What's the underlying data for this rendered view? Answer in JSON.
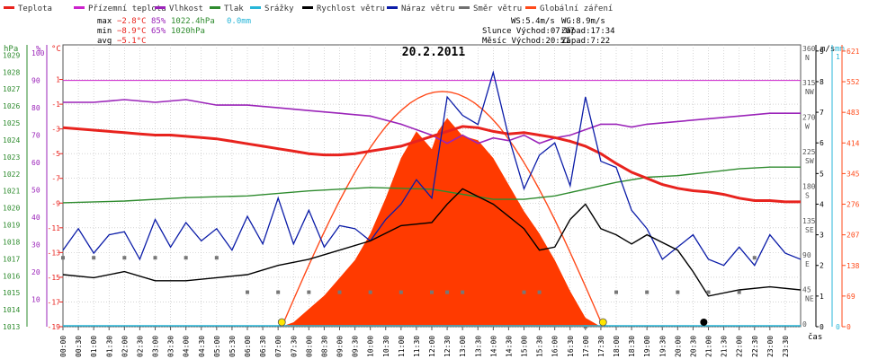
{
  "chart_data": {
    "type": "line",
    "title": "20.2.2011",
    "xlabel": "čas",
    "legend": [
      {
        "name": "Teplota",
        "color": "#e8231e"
      },
      {
        "name": "Přízemní teplota",
        "color": "#cc22cc"
      },
      {
        "name": "Vlhkost",
        "color": "#9b24b9"
      },
      {
        "name": "Tlak",
        "color": "#2e8b2e"
      },
      {
        "name": "Srážky",
        "color": "#27b6d8"
      },
      {
        "name": "Rychlost větru",
        "color": "#000000"
      },
      {
        "name": "Náraz větru",
        "color": "#0b1ca8"
      },
      {
        "name": "Směr větru",
        "color": "#707070"
      },
      {
        "name": "Globální záření",
        "color": "#ff4a1a"
      }
    ],
    "stats": {
      "max": {
        "label": "max",
        "temp": "−2.8°C",
        "hum": "85%",
        "press": "1022.4hPa",
        "rain": "0.0mm"
      },
      "min": {
        "label": "min",
        "temp": "−8.9°C",
        "hum": "65%",
        "press": "1020hPa"
      },
      "avg": {
        "label": "avg",
        "temp": "−5.1°C"
      }
    },
    "info": {
      "ws": "WS:5.4m/s",
      "wg": "WG:8.9m/s",
      "sun": "Slunce Východ:07:07",
      "sun_set": "Západ:17:34",
      "moon": "Měsíc  Východ:20:51",
      "moon_set": "Západ:7:22"
    },
    "axes": {
      "left_units": {
        "hpa": "hPa",
        "pct": "%",
        "degc": "°C"
      },
      "right_units": {
        "ms": "m/s",
        "mm": "mm"
      },
      "hpa_ticks": [
        "1029",
        "1028",
        "1027",
        "1026",
        "1025",
        "1024",
        "1023",
        "1022",
        "1021",
        "1020",
        "1019",
        "1018",
        "1017",
        "1016",
        "1015",
        "1014",
        "1013"
      ],
      "pct_ticks": [
        "100",
        "90",
        "80",
        "70",
        "60",
        "50",
        "40",
        "30",
        "20",
        "10"
      ],
      "temp_ticks": [
        "1",
        "-1",
        "-3",
        "-5",
        "-7",
        "-9",
        "-11",
        "-13",
        "-15",
        "-17",
        "-19"
      ],
      "dir_ticks": [
        {
          "deg": "360",
          "lbl": "N"
        },
        {
          "deg": "315",
          "lbl": "NW"
        },
        {
          "deg": "270",
          "lbl": "W"
        },
        {
          "deg": "225",
          "lbl": "SW"
        },
        {
          "deg": "180",
          "lbl": "S"
        },
        {
          "deg": "135",
          "lbl": "SE"
        },
        {
          "deg": "90",
          "lbl": "E"
        },
        {
          "deg": "45",
          "lbl": "NE"
        },
        {
          "deg": "0",
          "lbl": ""
        }
      ],
      "ms_ticks": [
        "9",
        "8",
        "7",
        "6",
        "5",
        "4",
        "3",
        "2",
        "1",
        "0"
      ],
      "mm_top": "1",
      "mm_bottom": "0",
      "rad_ticks": [
        "621",
        "552",
        "483",
        "414",
        "345",
        "276",
        "207",
        "138",
        "69",
        "0"
      ],
      "time_labels": [
        "00:00",
        "00:30",
        "01:00",
        "01:30",
        "02:00",
        "02:30",
        "03:00",
        "03:30",
        "04:00",
        "04:30",
        "05:00",
        "05:30",
        "06:00",
        "06:30",
        "07:00",
        "07:30",
        "08:00",
        "08:30",
        "09:00",
        "09:30",
        "10:00",
        "10:30",
        "11:00",
        "11:30",
        "12:00",
        "12:30",
        "13:00",
        "13:30",
        "14:00",
        "14:30",
        "15:00",
        "15:30",
        "16:00",
        "16:30",
        "17:00",
        "17:30",
        "18:00",
        "18:30",
        "19:00",
        "19:30",
        "20:00",
        "20:30",
        "21:00",
        "21:30",
        "22:00",
        "22:30",
        "23:00",
        "23:30"
      ]
    },
    "ylim": {
      "temp": [
        -19,
        1
      ],
      "humidity": [
        10,
        100
      ],
      "pressure": [
        1013,
        1029
      ],
      "wind": [
        0,
        9
      ],
      "radiation": [
        0,
        621
      ],
      "direction": [
        0,
        360
      ]
    },
    "series": {
      "temperature": [
        [
          0,
          -2.9
        ],
        [
          0.5,
          -3.0
        ],
        [
          1,
          -3.1
        ],
        [
          1.5,
          -3.2
        ],
        [
          2,
          -3.3
        ],
        [
          2.5,
          -3.4
        ],
        [
          3,
          -3.5
        ],
        [
          3.5,
          -3.5
        ],
        [
          4,
          -3.6
        ],
        [
          4.5,
          -3.7
        ],
        [
          5,
          -3.8
        ],
        [
          5.5,
          -4.0
        ],
        [
          6,
          -4.2
        ],
        [
          6.5,
          -4.4
        ],
        [
          7,
          -4.6
        ],
        [
          7.5,
          -4.8
        ],
        [
          8,
          -5.0
        ],
        [
          8.5,
          -5.1
        ],
        [
          9,
          -5.1
        ],
        [
          9.5,
          -5.0
        ],
        [
          10,
          -4.8
        ],
        [
          10.5,
          -4.6
        ],
        [
          11,
          -4.4
        ],
        [
          11.5,
          -4.0
        ],
        [
          12,
          -3.6
        ],
        [
          12.5,
          -3.2
        ],
        [
          13,
          -2.8
        ],
        [
          13.5,
          -2.9
        ],
        [
          14,
          -3.2
        ],
        [
          14.5,
          -3.4
        ],
        [
          15,
          -3.3
        ],
        [
          15.5,
          -3.5
        ],
        [
          16,
          -3.7
        ],
        [
          16.5,
          -4.0
        ],
        [
          17,
          -4.4
        ],
        [
          17.5,
          -5.0
        ],
        [
          18,
          -5.8
        ],
        [
          18.5,
          -6.5
        ],
        [
          19,
          -7.0
        ],
        [
          19.5,
          -7.5
        ],
        [
          20,
          -7.8
        ],
        [
          20.5,
          -8.0
        ],
        [
          21,
          -8.1
        ],
        [
          21.5,
          -8.3
        ],
        [
          22,
          -8.6
        ],
        [
          22.5,
          -8.8
        ],
        [
          23,
          -8.8
        ],
        [
          23.5,
          -8.9
        ],
        [
          24,
          -8.9
        ]
      ],
      "dew_point": [
        [
          0,
          90
        ],
        [
          24,
          90
        ]
      ],
      "humidity": [
        [
          0,
          82
        ],
        [
          1,
          82
        ],
        [
          2,
          83
        ],
        [
          3,
          82
        ],
        [
          4,
          83
        ],
        [
          5,
          81
        ],
        [
          6,
          81
        ],
        [
          7,
          80
        ],
        [
          8,
          79
        ],
        [
          9,
          78
        ],
        [
          10,
          77
        ],
        [
          11,
          74
        ],
        [
          12,
          70
        ],
        [
          12.5,
          67
        ],
        [
          13,
          70
        ],
        [
          13.5,
          67
        ],
        [
          14,
          69
        ],
        [
          14.5,
          68
        ],
        [
          15,
          70
        ],
        [
          15.5,
          67
        ],
        [
          16,
          69
        ],
        [
          16.5,
          70
        ],
        [
          17,
          72
        ],
        [
          17.5,
          74
        ],
        [
          18,
          74
        ],
        [
          18.5,
          73
        ],
        [
          19,
          74
        ],
        [
          20,
          75
        ],
        [
          21,
          76
        ],
        [
          22,
          77
        ],
        [
          23,
          78
        ],
        [
          24,
          78
        ]
      ],
      "pressure": [
        [
          0,
          1020.3
        ],
        [
          2,
          1020.4
        ],
        [
          4,
          1020.6
        ],
        [
          6,
          1020.7
        ],
        [
          8,
          1021.0
        ],
        [
          10,
          1021.2
        ],
        [
          12,
          1021.1
        ],
        [
          13,
          1020.8
        ],
        [
          14,
          1020.5
        ],
        [
          15,
          1020.5
        ],
        [
          16,
          1020.7
        ],
        [
          17,
          1021.1
        ],
        [
          18,
          1021.5
        ],
        [
          19,
          1021.8
        ],
        [
          20,
          1021.9
        ],
        [
          21,
          1022.1
        ],
        [
          22,
          1022.3
        ],
        [
          23,
          1022.4
        ],
        [
          24,
          1022.4
        ]
      ],
      "wind_speed": [
        [
          0,
          1.7
        ],
        [
          1,
          1.6
        ],
        [
          2,
          1.8
        ],
        [
          3,
          1.5
        ],
        [
          4,
          1.5
        ],
        [
          5,
          1.6
        ],
        [
          6,
          1.7
        ],
        [
          7,
          2.0
        ],
        [
          8,
          2.2
        ],
        [
          9,
          2.5
        ],
        [
          10,
          2.8
        ],
        [
          11,
          3.3
        ],
        [
          12,
          3.4
        ],
        [
          12.5,
          4.0
        ],
        [
          13,
          4.5
        ],
        [
          14,
          4.0
        ],
        [
          14.5,
          3.6
        ],
        [
          15,
          3.2
        ],
        [
          15.5,
          2.5
        ],
        [
          16,
          2.6
        ],
        [
          16.5,
          3.5
        ],
        [
          17,
          4.0
        ],
        [
          17.5,
          3.2
        ],
        [
          18,
          3.0
        ],
        [
          18.5,
          2.7
        ],
        [
          19,
          3.0
        ],
        [
          20,
          2.5
        ],
        [
          20.5,
          1.8
        ],
        [
          21,
          1.0
        ],
        [
          22,
          1.2
        ],
        [
          23,
          1.3
        ],
        [
          24,
          1.2
        ]
      ],
      "wind_gust": [
        [
          0,
          2.5
        ],
        [
          0.5,
          3.2
        ],
        [
          1,
          2.4
        ],
        [
          1.5,
          3.0
        ],
        [
          2,
          3.1
        ],
        [
          2.5,
          2.2
        ],
        [
          3,
          3.5
        ],
        [
          3.5,
          2.6
        ],
        [
          4,
          3.4
        ],
        [
          4.5,
          2.8
        ],
        [
          5,
          3.2
        ],
        [
          5.5,
          2.5
        ],
        [
          6,
          3.6
        ],
        [
          6.5,
          2.7
        ],
        [
          7,
          4.2
        ],
        [
          7.5,
          2.7
        ],
        [
          8,
          3.8
        ],
        [
          8.5,
          2.6
        ],
        [
          9,
          3.3
        ],
        [
          9.5,
          3.2
        ],
        [
          10,
          2.8
        ],
        [
          10.5,
          3.5
        ],
        [
          11,
          4.0
        ],
        [
          11.5,
          4.8
        ],
        [
          12,
          4.2
        ],
        [
          12.5,
          7.5
        ],
        [
          13,
          6.9
        ],
        [
          13.5,
          6.6
        ],
        [
          14,
          8.3
        ],
        [
          14.5,
          6.2
        ],
        [
          15,
          4.5
        ],
        [
          15.5,
          5.6
        ],
        [
          16,
          6.0
        ],
        [
          16.5,
          4.6
        ],
        [
          17,
          7.5
        ],
        [
          17.5,
          5.4
        ],
        [
          18,
          5.2
        ],
        [
          18.5,
          3.8
        ],
        [
          19,
          3.2
        ],
        [
          19.5,
          2.2
        ],
        [
          20,
          2.6
        ],
        [
          20.5,
          3.0
        ],
        [
          21,
          2.2
        ],
        [
          21.5,
          2.0
        ],
        [
          22,
          2.6
        ],
        [
          22.5,
          2.0
        ],
        [
          23,
          3.0
        ],
        [
          23.5,
          2.4
        ],
        [
          24,
          2.2
        ]
      ],
      "wind_direction": [
        [
          0,
          90
        ],
        [
          1,
          90
        ],
        [
          2,
          90
        ],
        [
          3,
          90
        ],
        [
          4,
          90
        ],
        [
          5,
          90
        ],
        [
          6,
          45
        ],
        [
          7,
          45
        ],
        [
          8,
          45
        ],
        [
          9,
          45
        ],
        [
          10,
          45
        ],
        [
          11,
          45
        ],
        [
          12,
          45
        ],
        [
          12.5,
          45
        ],
        [
          13,
          45
        ],
        [
          15,
          45
        ],
        [
          15.5,
          45
        ],
        [
          17,
          0
        ],
        [
          18,
          45
        ],
        [
          19,
          45
        ],
        [
          20,
          45
        ],
        [
          21,
          45
        ],
        [
          22,
          45
        ],
        [
          22.5,
          90
        ]
      ],
      "radiation": [
        [
          7.1,
          0
        ],
        [
          7.5,
          10
        ],
        [
          8,
          40
        ],
        [
          8.5,
          70
        ],
        [
          9,
          110
        ],
        [
          9.5,
          150
        ],
        [
          10,
          210
        ],
        [
          10.5,
          290
        ],
        [
          11,
          380
        ],
        [
          11.5,
          440
        ],
        [
          12,
          400
        ],
        [
          12.2,
          440
        ],
        [
          12.5,
          470
        ],
        [
          13,
          430
        ],
        [
          13.5,
          420
        ],
        [
          14,
          380
        ],
        [
          14.5,
          320
        ],
        [
          15,
          260
        ],
        [
          15.5,
          210
        ],
        [
          16,
          150
        ],
        [
          16.5,
          80
        ],
        [
          17,
          20
        ],
        [
          17.5,
          0
        ]
      ],
      "radiation_theoretical_max": 530,
      "sun": {
        "rise": 7.12,
        "set": 17.57
      },
      "moon": {
        "rise": 20.85
      }
    }
  }
}
